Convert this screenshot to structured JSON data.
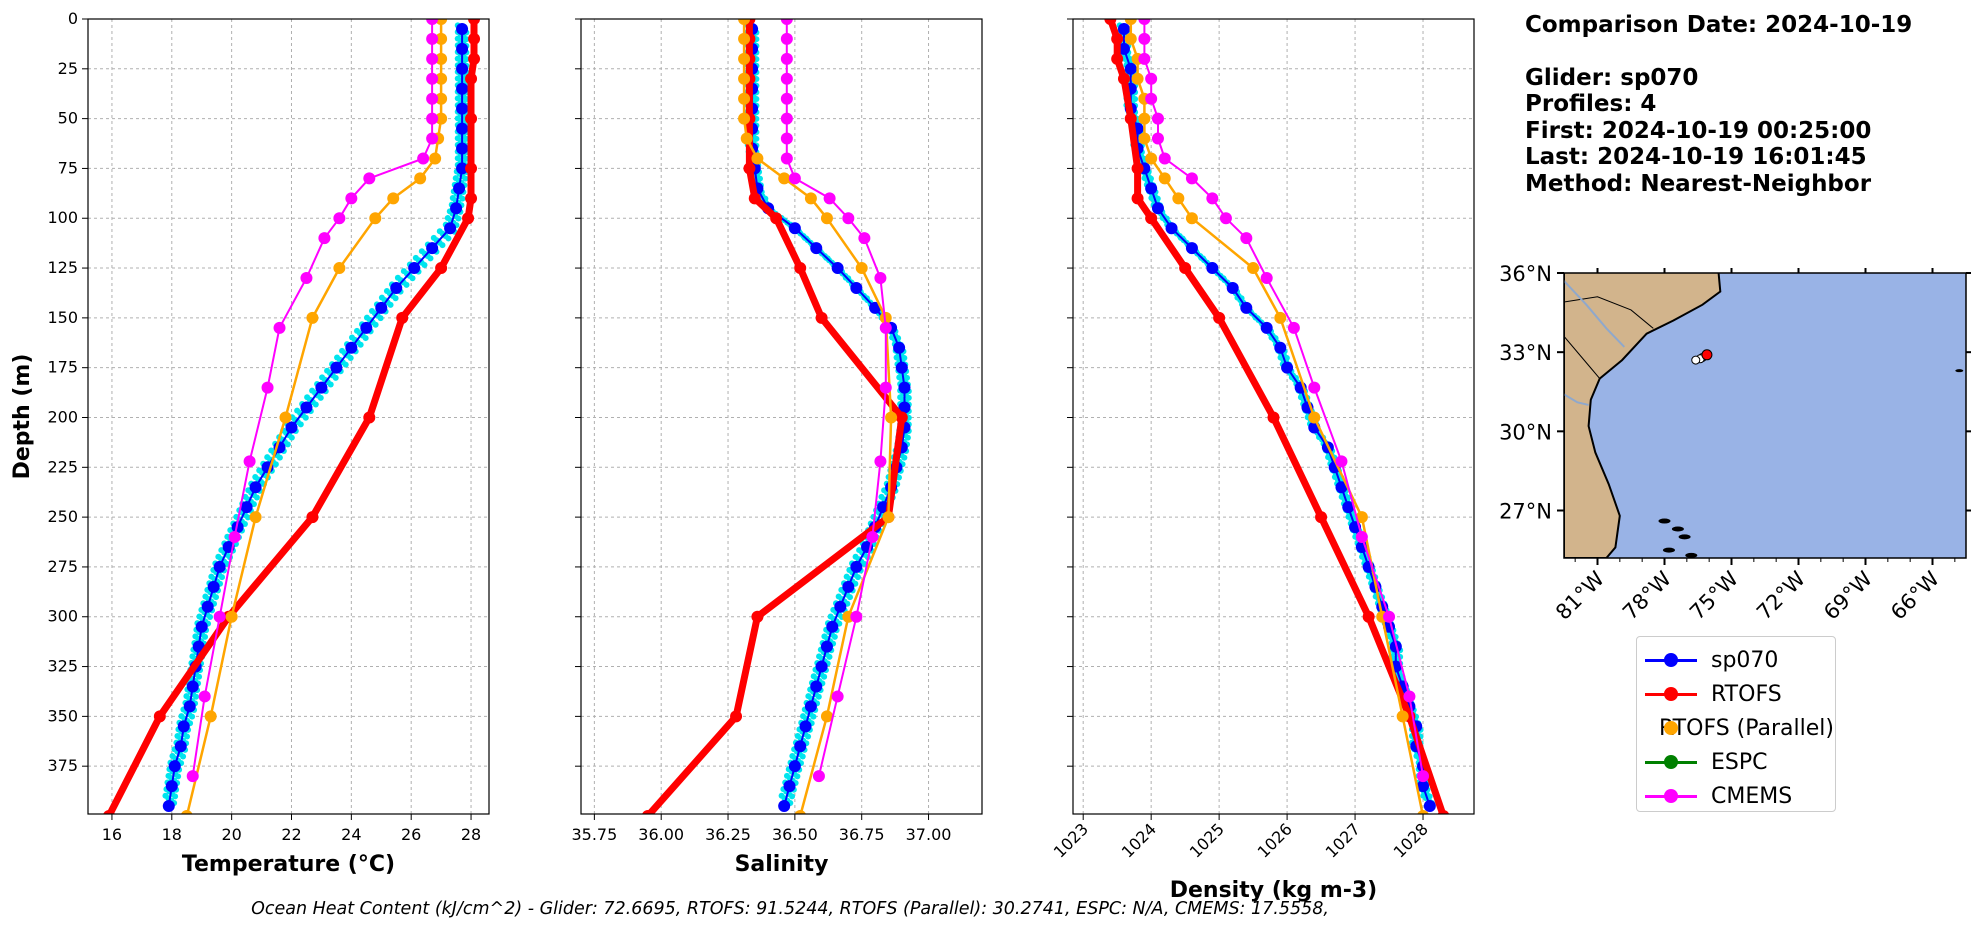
{
  "info": {
    "comparison_date": "Comparison Date: 2024-10-19",
    "glider": "Glider: sp070",
    "profiles": "Profiles: 4",
    "first": "First: 2024-10-19 00:25:00",
    "last": "Last: 2024-10-19 16:01:45",
    "method": "Method: Nearest-Neighbor"
  },
  "legend": [
    {
      "label": "sp070",
      "color": "#0000ff"
    },
    {
      "label": "RTOFS",
      "color": "#ff0000"
    },
    {
      "label": "RTOFS (Parallel)",
      "color": "#ffa500"
    },
    {
      "label": "ESPC",
      "color": "#008000"
    },
    {
      "label": "CMEMS",
      "color": "#ff00ff"
    }
  ],
  "caption": "Ocean Heat Content (kJ/cm^2) - Glider: 72.6695,  RTOFS: 91.5244,  RTOFS (Parallel): 30.2741,  ESPC: N/A,  CMEMS: 17.5558,",
  "colors": {
    "glider_profiles": "#00e5ee",
    "land": "#d2b48c",
    "ocean": "#99b3e6"
  },
  "chart_data": [
    {
      "type": "line",
      "xlabel": "Temperature (°C)",
      "ylabel": "Depth (m)",
      "xlim": [
        15.2,
        28.6
      ],
      "ylim": [
        399,
        0
      ],
      "xticks": [
        16,
        18,
        20,
        22,
        24,
        26,
        28
      ],
      "yticks": [
        0,
        25,
        50,
        75,
        100,
        125,
        150,
        175,
        200,
        225,
        250,
        275,
        300,
        325,
        350,
        375
      ],
      "grid": true,
      "series": [
        {
          "name": "sp070",
          "depth": [
            5,
            15,
            25,
            35,
            45,
            55,
            65,
            75,
            85,
            95,
            105,
            115,
            125,
            135,
            145,
            155,
            165,
            175,
            185,
            195,
            205,
            215,
            225,
            235,
            245,
            255,
            265,
            275,
            285,
            295,
            305,
            315,
            325,
            335,
            345,
            355,
            365,
            375,
            385,
            395
          ],
          "values": [
            27.7,
            27.7,
            27.7,
            27.7,
            27.7,
            27.7,
            27.7,
            27.7,
            27.6,
            27.5,
            27.3,
            26.7,
            26.1,
            25.5,
            25.0,
            24.5,
            24.0,
            23.5,
            23.0,
            22.5,
            22.0,
            21.6,
            21.2,
            20.8,
            20.5,
            20.2,
            19.9,
            19.6,
            19.4,
            19.2,
            19.0,
            18.9,
            18.8,
            18.7,
            18.6,
            18.4,
            18.3,
            18.1,
            18.0,
            17.9
          ]
        },
        {
          "name": "RTOFS",
          "depth": [
            0,
            10,
            20,
            30,
            50,
            75,
            90,
            100,
            125,
            150,
            200,
            250,
            300,
            350,
            400
          ],
          "values": [
            28.1,
            28.1,
            28.1,
            28.0,
            28.0,
            28.0,
            28.0,
            27.9,
            27.0,
            25.7,
            24.6,
            22.7,
            19.9,
            17.6,
            15.9
          ]
        },
        {
          "name": "RTOFS (Parallel)",
          "depth": [
            0,
            10,
            20,
            30,
            40,
            50,
            60,
            70,
            80,
            90,
            100,
            125,
            150,
            200,
            250,
            300,
            350,
            400
          ],
          "values": [
            27.0,
            27.0,
            27.0,
            27.0,
            27.0,
            27.0,
            26.9,
            26.8,
            26.3,
            25.4,
            24.8,
            23.6,
            22.7,
            21.8,
            20.8,
            20.0,
            19.3,
            18.5
          ]
        },
        {
          "name": "ESPC",
          "depth": [],
          "values": []
        },
        {
          "name": "CMEMS",
          "depth": [
            0,
            10,
            20,
            30,
            40,
            50,
            60,
            70,
            80,
            90,
            100,
            110,
            130,
            155,
            185,
            222,
            260,
            300,
            340,
            380
          ],
          "values": [
            26.7,
            26.7,
            26.7,
            26.7,
            26.7,
            26.7,
            26.7,
            26.4,
            24.6,
            24.0,
            23.6,
            23.1,
            22.5,
            21.6,
            21.2,
            20.6,
            20.1,
            19.6,
            19.1,
            18.7
          ]
        }
      ]
    },
    {
      "type": "line",
      "xlabel": "Salinity",
      "xlim": [
        35.7,
        37.2
      ],
      "ylim": [
        399,
        0
      ],
      "xticks": [
        35.75,
        36.0,
        36.25,
        36.5,
        36.75,
        37.0
      ],
      "grid": true,
      "series": [
        {
          "name": "sp070",
          "depth": [
            5,
            15,
            25,
            35,
            45,
            55,
            65,
            75,
            85,
            95,
            105,
            115,
            125,
            135,
            145,
            155,
            165,
            175,
            185,
            195,
            205,
            215,
            225,
            235,
            245,
            255,
            265,
            275,
            285,
            295,
            305,
            315,
            325,
            335,
            345,
            355,
            365,
            375,
            385,
            395
          ],
          "values": [
            36.34,
            36.34,
            36.34,
            36.34,
            36.34,
            36.34,
            36.34,
            36.35,
            36.36,
            36.4,
            36.5,
            36.58,
            36.66,
            36.73,
            36.8,
            36.86,
            36.89,
            36.9,
            36.91,
            36.91,
            36.91,
            36.9,
            36.88,
            36.86,
            36.83,
            36.8,
            36.77,
            36.73,
            36.7,
            36.67,
            36.64,
            36.62,
            36.6,
            36.58,
            36.56,
            36.54,
            36.52,
            36.5,
            36.48,
            36.46
          ]
        },
        {
          "name": "RTOFS",
          "depth": [
            0,
            10,
            20,
            30,
            50,
            75,
            90,
            100,
            125,
            150,
            200,
            250,
            300,
            350,
            400
          ],
          "values": [
            36.33,
            36.33,
            36.33,
            36.33,
            36.33,
            36.33,
            36.35,
            36.43,
            36.52,
            36.6,
            36.9,
            36.85,
            36.36,
            36.28,
            35.95
          ]
        },
        {
          "name": "RTOFS (Parallel)",
          "depth": [
            0,
            10,
            20,
            30,
            40,
            50,
            60,
            70,
            80,
            90,
            100,
            125,
            150,
            200,
            250,
            300,
            350,
            400
          ],
          "values": [
            36.31,
            36.31,
            36.31,
            36.31,
            36.31,
            36.31,
            36.32,
            36.36,
            36.46,
            36.56,
            36.62,
            36.75,
            36.84,
            36.86,
            36.85,
            36.7,
            36.62,
            36.52
          ]
        },
        {
          "name": "ESPC",
          "depth": [],
          "values": []
        },
        {
          "name": "CMEMS",
          "depth": [
            0,
            10,
            20,
            30,
            40,
            50,
            60,
            70,
            80,
            90,
            100,
            110,
            130,
            155,
            185,
            222,
            260,
            300,
            340,
            380
          ],
          "values": [
            36.47,
            36.47,
            36.47,
            36.47,
            36.47,
            36.47,
            36.47,
            36.47,
            36.5,
            36.63,
            36.7,
            36.76,
            36.82,
            36.84,
            36.84,
            36.82,
            36.79,
            36.73,
            36.66,
            36.59
          ]
        }
      ]
    },
    {
      "type": "line",
      "xlabel": "Density (kg m-3)",
      "xlim": [
        1022.85,
        1028.75
      ],
      "ylim": [
        399,
        0
      ],
      "xticks": [
        1023,
        1024,
        1025,
        1026,
        1027,
        1028
      ],
      "grid": true,
      "series": [
        {
          "name": "sp070",
          "depth": [
            5,
            15,
            25,
            35,
            45,
            55,
            65,
            75,
            85,
            95,
            105,
            115,
            125,
            135,
            145,
            155,
            165,
            175,
            185,
            195,
            205,
            215,
            225,
            235,
            245,
            255,
            265,
            275,
            285,
            295,
            305,
            315,
            325,
            335,
            345,
            355,
            365,
            375,
            385,
            395
          ],
          "values": [
            1023.6,
            1023.6,
            1023.7,
            1023.7,
            1023.7,
            1023.8,
            1023.8,
            1023.9,
            1024.0,
            1024.1,
            1024.3,
            1024.6,
            1024.9,
            1025.2,
            1025.4,
            1025.7,
            1025.9,
            1026.0,
            1026.2,
            1026.3,
            1026.4,
            1026.6,
            1026.7,
            1026.8,
            1026.9,
            1027.0,
            1027.1,
            1027.2,
            1027.3,
            1027.4,
            1027.5,
            1027.6,
            1027.6,
            1027.7,
            1027.8,
            1027.9,
            1027.9,
            1028.0,
            1028.0,
            1028.1
          ]
        },
        {
          "name": "RTOFS",
          "depth": [
            0,
            10,
            20,
            30,
            50,
            75,
            90,
            100,
            125,
            150,
            200,
            250,
            300,
            350,
            400
          ],
          "values": [
            1023.4,
            1023.5,
            1023.5,
            1023.6,
            1023.7,
            1023.8,
            1023.8,
            1024.0,
            1024.5,
            1025.0,
            1025.8,
            1026.5,
            1027.2,
            1027.8,
            1028.3
          ]
        },
        {
          "name": "RTOFS (Parallel)",
          "depth": [
            0,
            10,
            20,
            30,
            40,
            50,
            60,
            70,
            80,
            90,
            100,
            125,
            150,
            200,
            250,
            300,
            350,
            400
          ],
          "values": [
            1023.7,
            1023.7,
            1023.8,
            1023.8,
            1023.9,
            1023.9,
            1023.9,
            1024.0,
            1024.2,
            1024.4,
            1024.6,
            1025.5,
            1025.9,
            1026.4,
            1027.1,
            1027.4,
            1027.7,
            1028.0
          ]
        },
        {
          "name": "ESPC",
          "depth": [],
          "values": []
        },
        {
          "name": "CMEMS",
          "depth": [
            0,
            10,
            20,
            30,
            40,
            50,
            60,
            70,
            80,
            90,
            100,
            110,
            130,
            155,
            185,
            222,
            260,
            300,
            340,
            380
          ],
          "values": [
            1023.9,
            1023.9,
            1023.9,
            1024.0,
            1024.0,
            1024.1,
            1024.1,
            1024.2,
            1024.6,
            1024.9,
            1025.1,
            1025.4,
            1025.7,
            1026.1,
            1026.4,
            1026.8,
            1027.1,
            1027.5,
            1027.8,
            1028.0
          ]
        }
      ]
    },
    {
      "type": "map",
      "lon_range": [
        -82.5,
        -64.5
      ],
      "lat_range": [
        25.2,
        36.0
      ],
      "xticks": [
        "81°W",
        "78°W",
        "75°W",
        "72°W",
        "69°W",
        "66°W"
      ],
      "yticks": [
        "36°N",
        "33°N",
        "30°N",
        "27°N"
      ],
      "glider_positions": [
        [
          -76.3,
          32.8
        ],
        [
          -76.4,
          32.75
        ],
        [
          -76.6,
          32.7
        ]
      ],
      "model_position": [
        -76.1,
        32.9
      ]
    }
  ]
}
